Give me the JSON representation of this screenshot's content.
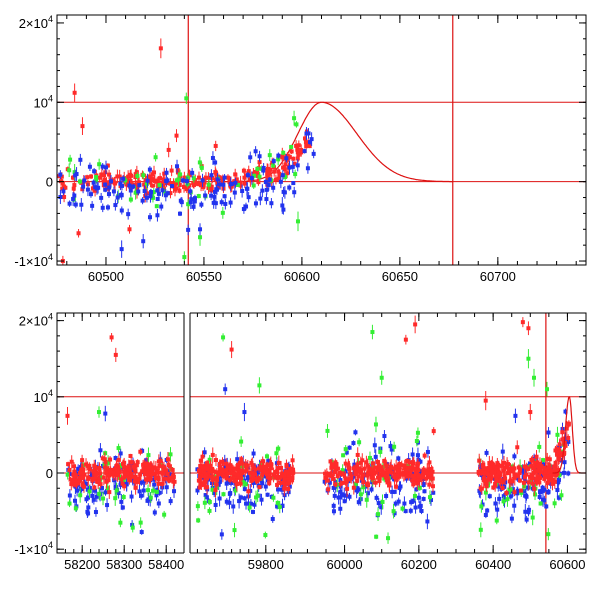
{
  "colors": {
    "red": "#ff2a2a",
    "green": "#33ee33",
    "blue": "#2233ee",
    "line": "#dd1111"
  },
  "chart_data": [
    {
      "type": "scatter",
      "xlim": [
        60475,
        60745
      ],
      "ylim": [
        -10500,
        21000
      ],
      "xticks": [
        60500,
        60550,
        60600,
        60650,
        60700
      ],
      "yticks": [
        {
          "value": 20000,
          "mantissa": "2×10",
          "exp": "4"
        },
        {
          "value": 10000,
          "mantissa": "10",
          "exp": "4"
        },
        {
          "value": 0,
          "mantissa": "0",
          "exp": ""
        },
        {
          "value": -10000,
          "mantissa": "-1×10",
          "exp": "4"
        }
      ],
      "hlines": [
        10000,
        0
      ],
      "vlines": [
        60542,
        60677
      ],
      "model": {
        "peak_x": 60610,
        "peak_y": 10000,
        "rise_sigma": 12,
        "decay_sigma": 18,
        "start_x": 60560,
        "end_x": 60677
      },
      "series": [
        {
          "color_key": "red",
          "x_range": [
            60476,
            60604
          ],
          "n": 230,
          "scatter": 700,
          "outliers": [
            [
              60484,
              11200
            ],
            [
              60488,
              7000
            ],
            [
              60528,
              16800
            ],
            [
              60536,
              5800
            ],
            [
              60556,
              4500
            ],
            [
              60478,
              -10000
            ],
            [
              60486,
              -6500
            ],
            [
              60512,
              -6000
            ],
            [
              60532,
              4000
            ],
            [
              60590,
              3200
            ]
          ]
        },
        {
          "color_key": "green",
          "x_range": [
            60476,
            60600
          ],
          "n": 50,
          "scatter": 1400,
          "outliers": [
            [
              60541,
              10500
            ],
            [
              60484,
              1200
            ],
            [
              60540,
              -9500
            ],
            [
              60548,
              -7000
            ],
            [
              60598,
              -5000
            ],
            [
              60596,
              8000
            ]
          ]
        },
        {
          "color_key": "blue",
          "x_range": [
            60476,
            60605
          ],
          "n": 150,
          "scatter": 1600,
          "outliers": [
            [
              60508,
              -8500
            ],
            [
              60519,
              -7500
            ],
            [
              60500,
              1800
            ],
            [
              60606,
              3500
            ],
            [
              60590,
              -3000
            ],
            [
              60548,
              -6000
            ]
          ]
        }
      ]
    },
    {
      "type": "scatter",
      "segments": [
        {
          "xlim": [
            58140,
            58440
          ],
          "xticks": [
            58200,
            58300,
            58400
          ],
          "data_x": [
            58165,
            58420
          ]
        },
        {
          "xlim": [
            59625,
            59880
          ],
          "xticks": [
            59800
          ],
          "data_x": [
            59640,
            59865
          ]
        },
        {
          "xlim": [
            59880,
            60650
          ],
          "xticks": [
            60000,
            60200,
            60400,
            60600
          ],
          "data_x": [
            [
              59945,
              60240
            ],
            [
              60360,
              60604
            ]
          ]
        }
      ],
      "ylim": [
        -10500,
        21000
      ],
      "yticks": [
        {
          "value": 20000,
          "mantissa": "2×10",
          "exp": "4"
        },
        {
          "value": 10000,
          "mantissa": "10",
          "exp": "4"
        },
        {
          "value": 0,
          "mantissa": "0",
          "exp": ""
        },
        {
          "value": -10000,
          "mantissa": "-1×10",
          "exp": "4"
        }
      ],
      "hlines": [
        10000,
        0
      ],
      "vlines": [
        60542
      ],
      "series": [
        {
          "color_key": "blue",
          "n_per_range": 110,
          "scatter": 2200
        },
        {
          "color_key": "green",
          "n_per_range": 35,
          "scatter": 3500
        },
        {
          "color_key": "red",
          "n_per_range": 200,
          "scatter": 900
        }
      ],
      "outliers": [
        {
          "color_key": "red",
          "points": [
            [
              58270,
              17800
            ],
            [
              58280,
              15500
            ],
            [
              58165,
              7500
            ],
            [
              59720,
              16200
            ],
            [
              60190,
              19500
            ],
            [
              60165,
              17500
            ],
            [
              60480,
              19800
            ],
            [
              60495,
              19000
            ],
            [
              60380,
              9500
            ],
            [
              60240,
              5500
            ],
            [
              60500,
              8000
            ]
          ]
        },
        {
          "color_key": "green",
          "points": [
            [
              59700,
              17800
            ],
            [
              59785,
              11500
            ],
            [
              60075,
              18500
            ],
            [
              60100,
              12500
            ],
            [
              60495,
              15000
            ],
            [
              60510,
              12500
            ],
            [
              60545,
              11000
            ],
            [
              58240,
              8000
            ]
          ]
        },
        {
          "color_key": "blue",
          "points": [
            [
              58255,
              7800
            ],
            [
              59750,
              8000
            ],
            [
              60460,
              7500
            ],
            [
              59705,
              11000
            ]
          ]
        }
      ]
    }
  ]
}
